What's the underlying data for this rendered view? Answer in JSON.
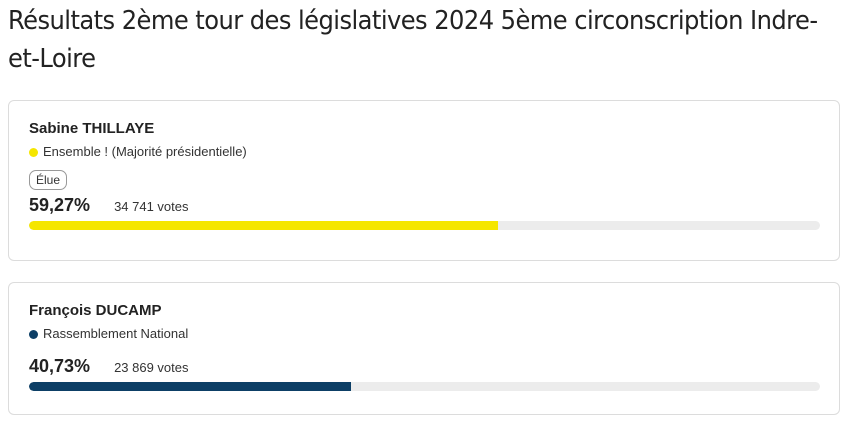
{
  "page": {
    "title": "Résultats 2ème tour des législatives 2024 5ème circonscription Indre-et-Loire"
  },
  "candidates": [
    {
      "name": "Sabine THILLAYE",
      "party": "Ensemble ! (Majorité présidentielle)",
      "party_color": "#f5e600",
      "badge": "Élue",
      "percent_label": "59,27%",
      "percent_value": 59.27,
      "votes_label": "34 741 votes"
    },
    {
      "name": "François DUCAMP",
      "party": "Rassemblement National",
      "party_color": "#0d3f66",
      "percent_label": "40,73%",
      "percent_value": 40.73,
      "votes_label": "23 869 votes"
    }
  ]
}
